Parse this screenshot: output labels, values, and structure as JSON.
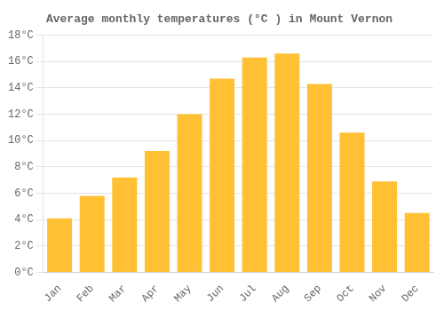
{
  "chart_data": {
    "type": "bar",
    "title": "Average monthly temperatures (°C ) in Mount Vernon",
    "categories": [
      "Jan",
      "Feb",
      "Mar",
      "Apr",
      "May",
      "Jun",
      "Jul",
      "Aug",
      "Sep",
      "Oct",
      "Nov",
      "Dec"
    ],
    "values": [
      4.1,
      5.8,
      7.2,
      9.2,
      12.0,
      14.7,
      16.3,
      16.6,
      14.3,
      10.6,
      6.9,
      4.5
    ],
    "color": "#FFC034",
    "ylim": [
      0,
      18
    ],
    "yticks": [
      {
        "value": 0,
        "label": "0°C"
      },
      {
        "value": 2,
        "label": "2°C"
      },
      {
        "value": 4,
        "label": "4°C"
      },
      {
        "value": 6,
        "label": "6°C"
      },
      {
        "value": 8,
        "label": "8°C"
      },
      {
        "value": 10,
        "label": "10°C"
      },
      {
        "value": 12,
        "label": "12°C"
      },
      {
        "value": 14,
        "label": "14°C"
      },
      {
        "value": 16,
        "label": "16°C"
      },
      {
        "value": 18,
        "label": "18°C"
      }
    ],
    "grid": true
  }
}
